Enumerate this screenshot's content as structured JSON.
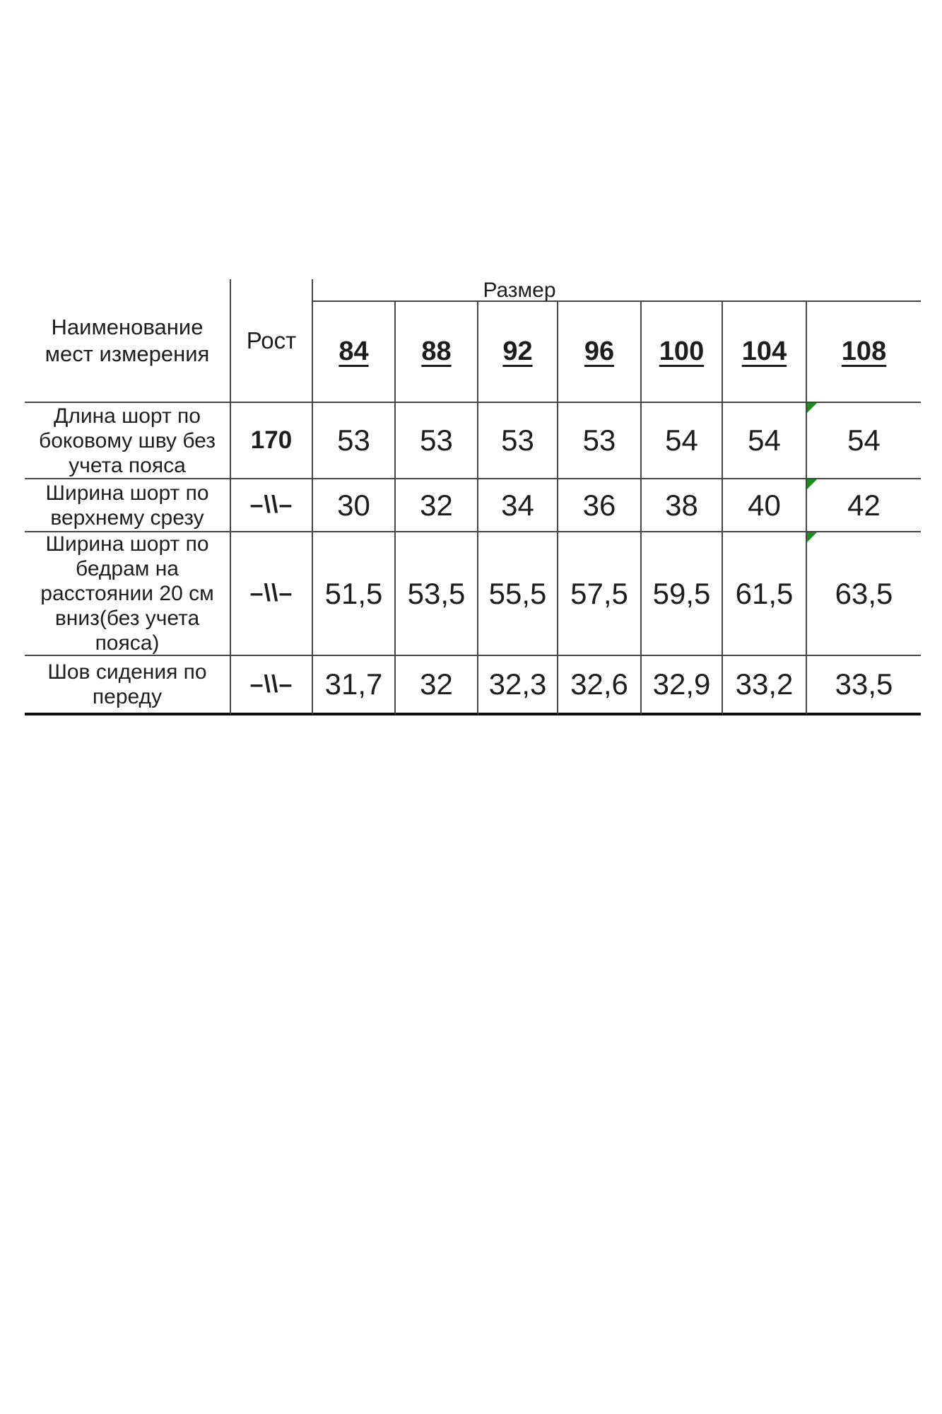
{
  "table": {
    "col1_header": "Наименование мест измерения",
    "col2_header": "Рост",
    "sizes_group_header": "Размер",
    "sizes": [
      "84",
      "88",
      "92",
      "96",
      "100",
      "104",
      "108"
    ],
    "rows": [
      {
        "label": "Длина шорт по боковому шву без учета пояса",
        "rost": "170",
        "values": [
          "53",
          "53",
          "53",
          "53",
          "54",
          "54",
          "54"
        ]
      },
      {
        "label": "Ширина шорт по верхнему срезу",
        "rost": "–\\\\–",
        "values": [
          "30",
          "32",
          "34",
          "36",
          "38",
          "40",
          "42"
        ]
      },
      {
        "label": "Ширина шорт по бедрам на расстоянии 20 см вниз(без учета пояса)",
        "rost": "–\\\\–",
        "values": [
          "51,5",
          "53,5",
          "55,5",
          "57,5",
          "59,5",
          "61,5",
          "63,5"
        ]
      },
      {
        "label": "Шов сидения по переду",
        "rost": "–\\\\–",
        "values": [
          "31,7",
          "32",
          "32,3",
          "32,6",
          "32,9",
          "33,2",
          "33,5"
        ]
      }
    ],
    "flag_color": "#1e8b24"
  }
}
